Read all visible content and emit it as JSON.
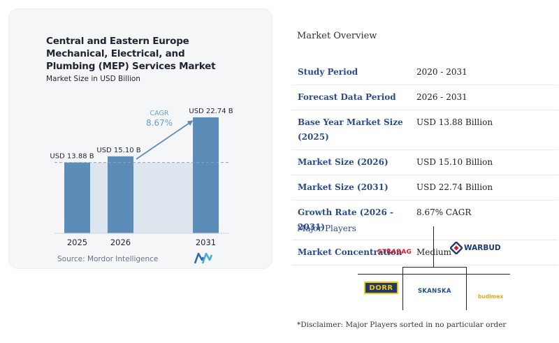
{
  "chart_data": {
    "type": "bar",
    "title": "Central and Eastern Europe Mechanical, Electrical, and Plumbing (MEP) Services Market",
    "subtitle": "Market Size in USD Billion",
    "categories": [
      "2025",
      "2026",
      "2031"
    ],
    "values": [
      13.88,
      15.1,
      22.74
    ],
    "data_labels": [
      "USD 13.88 B",
      "USD 15.10 B",
      "USD 22.74 B"
    ],
    "cagr_label": "CAGR",
    "cagr_value": "8.67%",
    "xlabel": "",
    "ylabel": "",
    "ylim": [
      0,
      22.74
    ],
    "bar_color": "#5b8db8",
    "shade_color": "#dde6ef",
    "baseline_dashed": true,
    "source": "Source: Mordor Intelligence"
  },
  "overview": {
    "title": "Market Overview",
    "rows": [
      {
        "label": "Study Period",
        "value": "2020 - 2031"
      },
      {
        "label": "Forecast Data Period",
        "value": "2026 - 2031"
      },
      {
        "label": "Base Year Market Size (2025)",
        "value": "USD 13.88 Billion"
      },
      {
        "label": "Market Size (2026)",
        "value": "USD 15.10 Billion"
      },
      {
        "label": "Market Size (2031)",
        "value": "USD 22.74 Billion"
      },
      {
        "label": "Growth Rate (2026 - 2031)",
        "value": "8.67% CAGR"
      },
      {
        "label": "Market Concentration",
        "value": "Medium"
      }
    ]
  },
  "players": {
    "title": "Major Players",
    "logos": [
      "STRABAG",
      "WARBUD",
      "DORR",
      "SKANSKA",
      "budimex"
    ],
    "disclaimer": "*Disclaimer: Major Players sorted in no particular order"
  },
  "colors": {
    "label_blue": "#2a4a8a",
    "strabag_red": "#d0202e",
    "warbud_navy": "#1f3a6e",
    "dorr_yellow": "#f5c400",
    "skanska_blue": "#1f4f8f",
    "budimex_yellow": "#e6a817"
  }
}
